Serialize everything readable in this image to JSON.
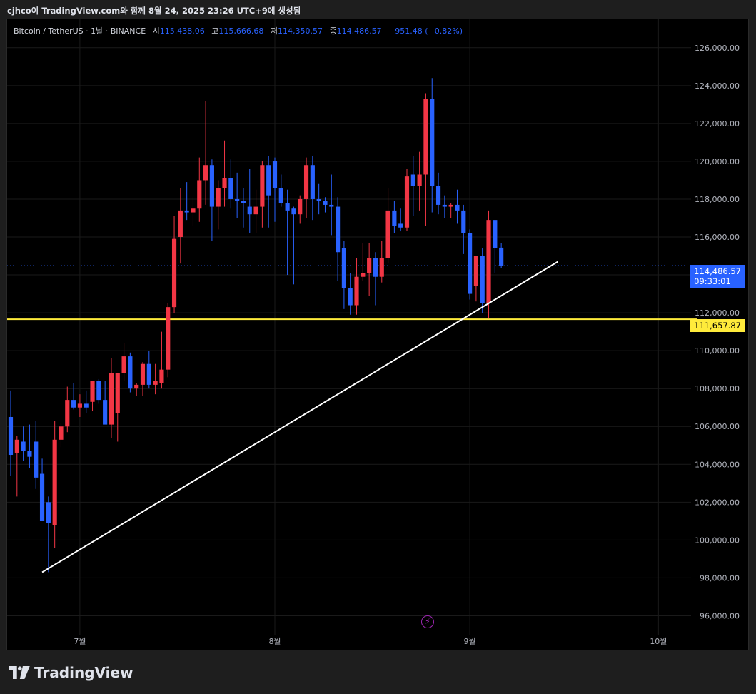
{
  "header": "cjhco이 TradingView.com와 함께 8월 24, 2025 23:26 UTC+9에 생성됨",
  "legend": {
    "symbol": "Bitcoin / TetherUS · 1날 · BINANCE",
    "open_label": "시",
    "open": "115,438.06",
    "high_label": "고",
    "high": "115,666.68",
    "low_label": "저",
    "low": "114,350.57",
    "close_label": "종",
    "close": "114,486.57",
    "change": "−951.48 (−0.82%)"
  },
  "last_price": {
    "value": "114,486.57",
    "countdown": "09:33:01"
  },
  "level_price": "111,657.87",
  "brand": "TradingView",
  "colors": {
    "up": "#f23645",
    "down": "#2962ff",
    "level": "#ffeb3b",
    "trendline": "#ffffff",
    "background": "#000000"
  },
  "chart_data": {
    "type": "candlestick",
    "symbol": "BTCUSDT",
    "interval": "1D",
    "ylim": [
      95000,
      127500
    ],
    "yticks": [
      96000,
      98000,
      100000,
      102000,
      104000,
      106000,
      108000,
      110000,
      112000,
      114000,
      116000,
      118000,
      120000,
      122000,
      124000,
      126000
    ],
    "ytick_labels": [
      "96,000.00",
      "98,000.00",
      "100,000.00",
      "102,000.00",
      "104,000.00",
      "106,000.00",
      "108,000.00",
      "110,000.00",
      "112,000.00",
      "114,000.00",
      "116,000.00",
      "118,000.00",
      "120,000.00",
      "122,000.00",
      "124,000.00",
      "126,000.00"
    ],
    "x_date_range": [
      "2025-06-20",
      "2025-10-03"
    ],
    "xticks": [
      {
        "date": "2025-07-01",
        "label": "7월"
      },
      {
        "date": "2025-08-01",
        "label": "8월"
      },
      {
        "date": "2025-09-01",
        "label": "9월"
      },
      {
        "date": "2025-10-01",
        "label": "10월"
      }
    ],
    "grid": true,
    "candles": [
      {
        "d": "2025-06-20",
        "o": 106500,
        "h": 107900,
        "l": 103400,
        "c": 104500
      },
      {
        "d": "2025-06-21",
        "o": 104600,
        "h": 105500,
        "l": 102300,
        "c": 105300
      },
      {
        "d": "2025-06-22",
        "o": 105200,
        "h": 106000,
        "l": 104200,
        "c": 104700
      },
      {
        "d": "2025-06-23",
        "o": 104700,
        "h": 106100,
        "l": 103800,
        "c": 104400
      },
      {
        "d": "2025-06-24",
        "o": 105200,
        "h": 106300,
        "l": 102700,
        "c": 103300
      },
      {
        "d": "2025-06-25",
        "o": 103500,
        "h": 104300,
        "l": 101000,
        "c": 101000
      },
      {
        "d": "2025-06-26",
        "o": 102000,
        "h": 102300,
        "l": 98300,
        "c": 100900
      },
      {
        "d": "2025-06-27",
        "o": 100800,
        "h": 106300,
        "l": 99600,
        "c": 105300
      },
      {
        "d": "2025-06-28",
        "o": 105300,
        "h": 106200,
        "l": 104900,
        "c": 106000
      },
      {
        "d": "2025-06-29",
        "o": 106000,
        "h": 108100,
        "l": 105700,
        "c": 107400
      },
      {
        "d": "2025-06-30",
        "o": 107400,
        "h": 108300,
        "l": 106900,
        "c": 107000
      },
      {
        "d": "2025-07-01",
        "o": 107000,
        "h": 107700,
        "l": 106500,
        "c": 107200
      },
      {
        "d": "2025-07-02",
        "o": 107200,
        "h": 107900,
        "l": 106700,
        "c": 107000
      },
      {
        "d": "2025-07-03",
        "o": 107300,
        "h": 108400,
        "l": 106800,
        "c": 108400
      },
      {
        "d": "2025-07-04",
        "o": 108400,
        "h": 108500,
        "l": 107200,
        "c": 107400
      },
      {
        "d": "2025-07-05",
        "o": 107400,
        "h": 108400,
        "l": 106200,
        "c": 106100
      },
      {
        "d": "2025-07-06",
        "o": 106100,
        "h": 109600,
        "l": 105400,
        "c": 108800
      },
      {
        "d": "2025-07-07",
        "o": 106700,
        "h": 108600,
        "l": 105200,
        "c": 108800
      },
      {
        "d": "2025-07-08",
        "o": 108800,
        "h": 110400,
        "l": 108400,
        "c": 109700
      },
      {
        "d": "2025-07-09",
        "o": 109700,
        "h": 109900,
        "l": 107800,
        "c": 108000
      },
      {
        "d": "2025-07-10",
        "o": 108000,
        "h": 108300,
        "l": 107600,
        "c": 108200
      },
      {
        "d": "2025-07-11",
        "o": 108200,
        "h": 109400,
        "l": 107600,
        "c": 109300
      },
      {
        "d": "2025-07-12",
        "o": 109300,
        "h": 110000,
        "l": 108000,
        "c": 108200
      },
      {
        "d": "2025-07-13",
        "o": 108200,
        "h": 109300,
        "l": 107700,
        "c": 108400
      },
      {
        "d": "2025-07-14",
        "o": 108300,
        "h": 111000,
        "l": 108000,
        "c": 109000
      },
      {
        "d": "2025-07-15",
        "o": 109000,
        "h": 112500,
        "l": 108600,
        "c": 112300
      },
      {
        "d": "2025-07-16",
        "o": 112300,
        "h": 117100,
        "l": 112000,
        "c": 115900
      },
      {
        "d": "2025-07-17",
        "o": 116000,
        "h": 118600,
        "l": 114600,
        "c": 117400
      },
      {
        "d": "2025-07-18",
        "o": 117400,
        "h": 118900,
        "l": 116900,
        "c": 117300
      },
      {
        "d": "2025-07-19",
        "o": 117300,
        "h": 118100,
        "l": 116600,
        "c": 117500
      },
      {
        "d": "2025-07-20",
        "o": 117500,
        "h": 120200,
        "l": 116800,
        "c": 119000
      },
      {
        "d": "2025-07-21",
        "o": 119000,
        "h": 123200,
        "l": 117700,
        "c": 119800
      },
      {
        "d": "2025-07-22",
        "o": 119800,
        "h": 120100,
        "l": 115800,
        "c": 117600
      },
      {
        "d": "2025-07-23",
        "o": 117600,
        "h": 119000,
        "l": 116400,
        "c": 118600
      },
      {
        "d": "2025-07-24",
        "o": 118600,
        "h": 121100,
        "l": 117600,
        "c": 119100
      },
      {
        "d": "2025-07-25",
        "o": 119100,
        "h": 120100,
        "l": 117500,
        "c": 118000
      },
      {
        "d": "2025-07-26",
        "o": 118000,
        "h": 119400,
        "l": 117000,
        "c": 117900
      },
      {
        "d": "2025-07-27",
        "o": 117900,
        "h": 118600,
        "l": 116500,
        "c": 117800
      },
      {
        "d": "2025-07-28",
        "o": 117600,
        "h": 119600,
        "l": 116200,
        "c": 117200
      },
      {
        "d": "2025-07-29",
        "o": 117200,
        "h": 118500,
        "l": 116200,
        "c": 117600
      },
      {
        "d": "2025-07-30",
        "o": 117600,
        "h": 120000,
        "l": 116500,
        "c": 119800
      },
      {
        "d": "2025-07-31",
        "o": 119800,
        "h": 120300,
        "l": 116500,
        "c": 118200
      },
      {
        "d": "2025-08-01",
        "o": 120000,
        "h": 120200,
        "l": 116800,
        "c": 118600
      },
      {
        "d": "2025-08-02",
        "o": 118600,
        "h": 119300,
        "l": 117600,
        "c": 117800
      },
      {
        "d": "2025-08-03",
        "o": 117800,
        "h": 118500,
        "l": 114000,
        "c": 117400
      },
      {
        "d": "2025-08-04",
        "o": 117500,
        "h": 117600,
        "l": 113500,
        "c": 117200
      },
      {
        "d": "2025-08-05",
        "o": 117200,
        "h": 118200,
        "l": 116700,
        "c": 118000
      },
      {
        "d": "2025-08-06",
        "o": 118000,
        "h": 120200,
        "l": 117000,
        "c": 119800
      },
      {
        "d": "2025-08-07",
        "o": 119800,
        "h": 120300,
        "l": 116900,
        "c": 118000
      },
      {
        "d": "2025-08-08",
        "o": 118000,
        "h": 118800,
        "l": 117200,
        "c": 117900
      },
      {
        "d": "2025-08-09",
        "o": 117900,
        "h": 118100,
        "l": 117300,
        "c": 117700
      },
      {
        "d": "2025-08-10",
        "o": 117700,
        "h": 119300,
        "l": 116100,
        "c": 117600
      },
      {
        "d": "2025-08-11",
        "o": 117600,
        "h": 118100,
        "l": 113700,
        "c": 115200
      },
      {
        "d": "2025-08-12",
        "o": 115400,
        "h": 115800,
        "l": 112200,
        "c": 113300
      },
      {
        "d": "2025-08-13",
        "o": 113300,
        "h": 114100,
        "l": 111900,
        "c": 112400
      },
      {
        "d": "2025-08-14",
        "o": 112400,
        "h": 114900,
        "l": 111900,
        "c": 113900
      },
      {
        "d": "2025-08-15",
        "o": 113900,
        "h": 115700,
        "l": 113700,
        "c": 114100
      },
      {
        "d": "2025-08-16",
        "o": 114100,
        "h": 115700,
        "l": 112900,
        "c": 114900
      },
      {
        "d": "2025-08-17",
        "o": 114900,
        "h": 115200,
        "l": 112400,
        "c": 113900
      },
      {
        "d": "2025-08-18",
        "o": 113900,
        "h": 115800,
        "l": 113600,
        "c": 114900
      },
      {
        "d": "2025-08-19",
        "o": 114900,
        "h": 118600,
        "l": 114600,
        "c": 117400
      },
      {
        "d": "2025-08-20",
        "o": 117400,
        "h": 117900,
        "l": 116200,
        "c": 116600
      },
      {
        "d": "2025-08-21",
        "o": 116700,
        "h": 117500,
        "l": 116300,
        "c": 116500
      },
      {
        "d": "2025-08-22",
        "o": 116500,
        "h": 119600,
        "l": 116300,
        "c": 119200
      },
      {
        "d": "2025-08-23",
        "o": 119300,
        "h": 120300,
        "l": 117100,
        "c": 118700
      },
      {
        "d": "2025-08-24",
        "o": 118700,
        "h": 120500,
        "l": 117400,
        "c": 119300
      },
      {
        "d": "2025-08-25",
        "o": 119300,
        "h": 123600,
        "l": 116600,
        "c": 123300
      },
      {
        "d": "2025-08-26",
        "o": 123300,
        "h": 124400,
        "l": 117300,
        "c": 118700
      },
      {
        "d": "2025-08-27",
        "o": 118700,
        "h": 119400,
        "l": 117200,
        "c": 117700
      },
      {
        "d": "2025-08-28",
        "o": 117700,
        "h": 118200,
        "l": 117000,
        "c": 117600
      },
      {
        "d": "2025-08-29",
        "o": 117600,
        "h": 117800,
        "l": 117000,
        "c": 117700
      },
      {
        "d": "2025-08-30",
        "o": 117700,
        "h": 118500,
        "l": 116700,
        "c": 117400
      },
      {
        "d": "2025-08-31",
        "o": 117400,
        "h": 117700,
        "l": 115100,
        "c": 116200
      },
      {
        "d": "2025-09-01",
        "o": 116200,
        "h": 116400,
        "l": 112700,
        "c": 113000
      },
      {
        "d": "2025-09-02",
        "o": 113400,
        "h": 114800,
        "l": 112600,
        "c": 115000
      },
      {
        "d": "2025-09-03",
        "o": 115000,
        "h": 115400,
        "l": 112000,
        "c": 112500
      },
      {
        "d": "2025-09-04",
        "o": 112500,
        "h": 117400,
        "l": 111700,
        "c": 116900
      },
      {
        "d": "2025-09-05",
        "o": 116900,
        "h": 116900,
        "l": 114100,
        "c": 115400
      },
      {
        "d": "2025-09-06",
        "o": 115438.06,
        "h": 115666.68,
        "l": 114350.57,
        "c": 114486.57
      }
    ],
    "trendline": {
      "from": {
        "d": "2025-06-25",
        "p": 98300
      },
      "to": {
        "d": "2025-09-15",
        "p": 114700
      }
    },
    "horizontal_level": 111657.87,
    "last_price": 114486.57
  }
}
